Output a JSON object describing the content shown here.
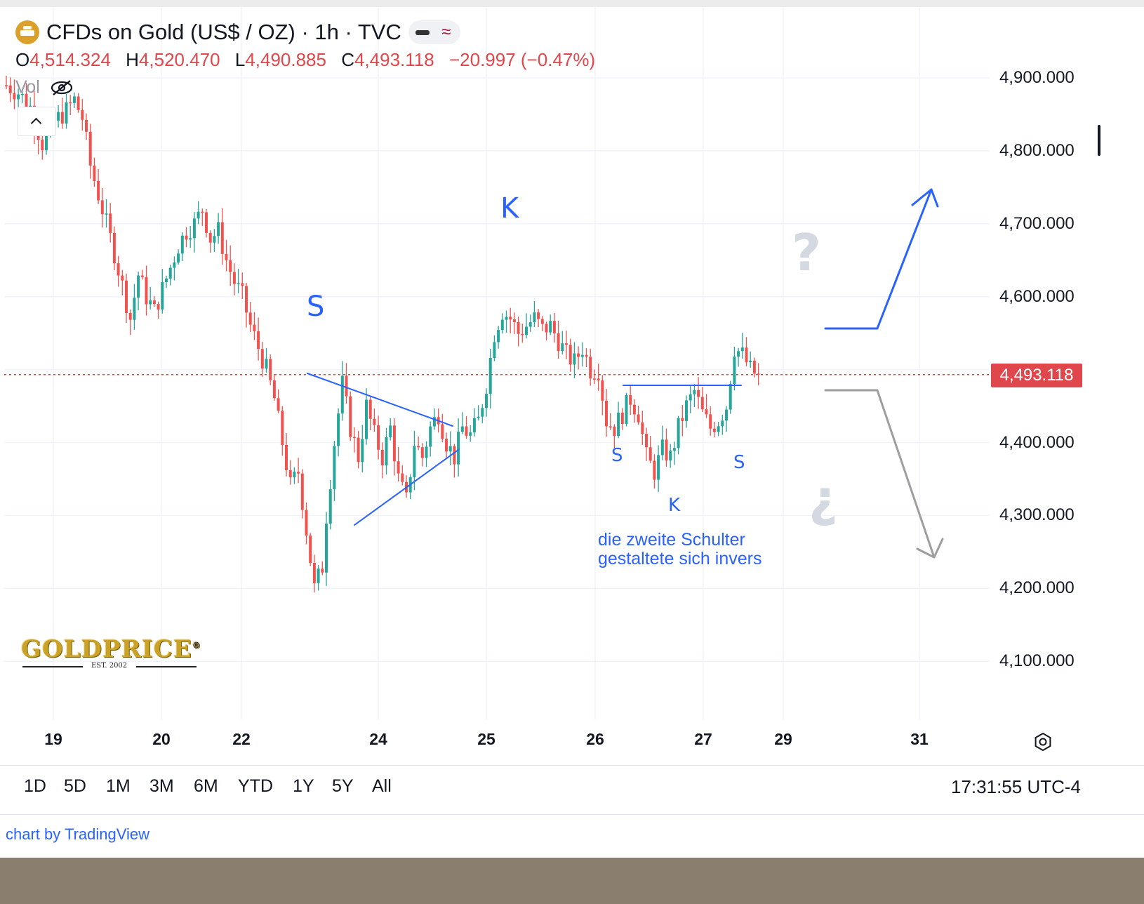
{
  "header": {
    "title": "CFDs on Gold (US$ / OZ) · 1h · TVC",
    "ohlc": {
      "o_label": "O",
      "o_value": "4,514.324",
      "h_label": "H",
      "h_value": "4,520.470",
      "l_label": "L",
      "l_value": "4,490.885",
      "c_label": "C",
      "c_value": "4,493.118",
      "change": "−20.997 (−0.47%)"
    },
    "vol_label": "Vol"
  },
  "price_tag": "4,493.118",
  "annotations": {
    "big_s": "S",
    "big_k": "K",
    "small_s1": "S",
    "small_k": "K",
    "small_s2": "S",
    "note_line1": "die zweite Schulter",
    "note_line2": "gestaltete sich invers",
    "question": "?",
    "inverted_question": "¿"
  },
  "logo": {
    "text": "GOLDPRICE",
    "sub": "EST. 2002",
    "reg": "®"
  },
  "range_buttons": [
    "1D",
    "5D",
    "1M",
    "3M",
    "6M",
    "YTD",
    "1Y",
    "5Y",
    "All"
  ],
  "time": "17:31:55 UTC-4",
  "credit": "chart by TradingView",
  "colors": {
    "up": "#26a69a",
    "down": "#ef5350",
    "pattern": "#2962ff",
    "bearish_scenario": "#9e9e9e",
    "price_line": "#e0474c"
  },
  "chart_data": {
    "type": "candlestick",
    "title": "CFDs on Gold (US$ / OZ) · 1h · TVC",
    "ylim": [
      4020,
      4950
    ],
    "y_ticks": [
      "4,900.000",
      "4,800.000",
      "4,700.000",
      "4,600.000",
      "4,500.000",
      "4,400.000",
      "4,300.000",
      "4,200.000",
      "4,100.000"
    ],
    "y_tick_values": [
      4900,
      4800,
      4700,
      4600,
      4500,
      4400,
      4300,
      4200,
      4100
    ],
    "x_ticks": [
      "19",
      "20",
      "22",
      "24",
      "25",
      "26",
      "27",
      "29",
      "31"
    ],
    "last_price": 4493.118,
    "close_path": [
      [
        0,
        4890
      ],
      [
        3,
        4880
      ],
      [
        6,
        4860
      ],
      [
        9,
        4810
      ],
      [
        12,
        4840
      ],
      [
        15,
        4855
      ],
      [
        17,
        4870
      ],
      [
        19,
        4845
      ],
      [
        21,
        4780
      ],
      [
        23,
        4740
      ],
      [
        25,
        4700
      ],
      [
        27,
        4660
      ],
      [
        29,
        4615
      ],
      [
        31,
        4570
      ],
      [
        33,
        4630
      ],
      [
        35,
        4600
      ],
      [
        37,
        4580
      ],
      [
        39,
        4610
      ],
      [
        41,
        4640
      ],
      [
        43,
        4670
      ],
      [
        45,
        4690
      ],
      [
        47,
        4700
      ],
      [
        49,
        4720
      ],
      [
        51,
        4680
      ],
      [
        53,
        4690
      ],
      [
        55,
        4650
      ],
      [
        57,
        4620
      ],
      [
        59,
        4600
      ],
      [
        61,
        4560
      ],
      [
        63,
        4530
      ],
      [
        65,
        4500
      ],
      [
        67,
        4460
      ],
      [
        69,
        4400
      ],
      [
        71,
        4340
      ],
      [
        73,
        4360
      ],
      [
        75,
        4280
      ],
      [
        77,
        4200
      ],
      [
        79,
        4230
      ],
      [
        80,
        4300
      ],
      [
        82,
        4400
      ],
      [
        84,
        4480
      ],
      [
        86,
        4420
      ],
      [
        88,
        4380
      ],
      [
        90,
        4450
      ],
      [
        92,
        4410
      ],
      [
        94,
        4380
      ],
      [
        96,
        4420
      ],
      [
        98,
        4350
      ],
      [
        100,
        4320
      ],
      [
        102,
        4400
      ],
      [
        104,
        4380
      ],
      [
        106,
        4420
      ],
      [
        108,
        4440
      ],
      [
        110,
        4400
      ],
      [
        112,
        4380
      ],
      [
        114,
        4420
      ],
      [
        116,
        4410
      ],
      [
        118,
        4430
      ],
      [
        120,
        4480
      ],
      [
        122,
        4550
      ],
      [
        124,
        4580
      ],
      [
        126,
        4570
      ],
      [
        128,
        4550
      ],
      [
        130,
        4560
      ],
      [
        132,
        4570
      ],
      [
        134,
        4555
      ],
      [
        136,
        4560
      ],
      [
        138,
        4540
      ],
      [
        140,
        4520
      ],
      [
        142,
        4510
      ],
      [
        144,
        4530
      ],
      [
        146,
        4500
      ],
      [
        148,
        4500
      ],
      [
        150,
        4430
      ],
      [
        152,
        4420
      ],
      [
        154,
        4440
      ],
      [
        156,
        4460
      ],
      [
        158,
        4440
      ],
      [
        160,
        4380
      ],
      [
        162,
        4360
      ],
      [
        164,
        4390
      ],
      [
        166,
        4380
      ],
      [
        168,
        4420
      ],
      [
        170,
        4450
      ],
      [
        172,
        4470
      ],
      [
        174,
        4440
      ],
      [
        176,
        4420
      ],
      [
        178,
        4430
      ],
      [
        180,
        4450
      ],
      [
        182,
        4530
      ],
      [
        184,
        4520
      ],
      [
        186,
        4500
      ],
      [
        188,
        4490
      ]
    ]
  }
}
